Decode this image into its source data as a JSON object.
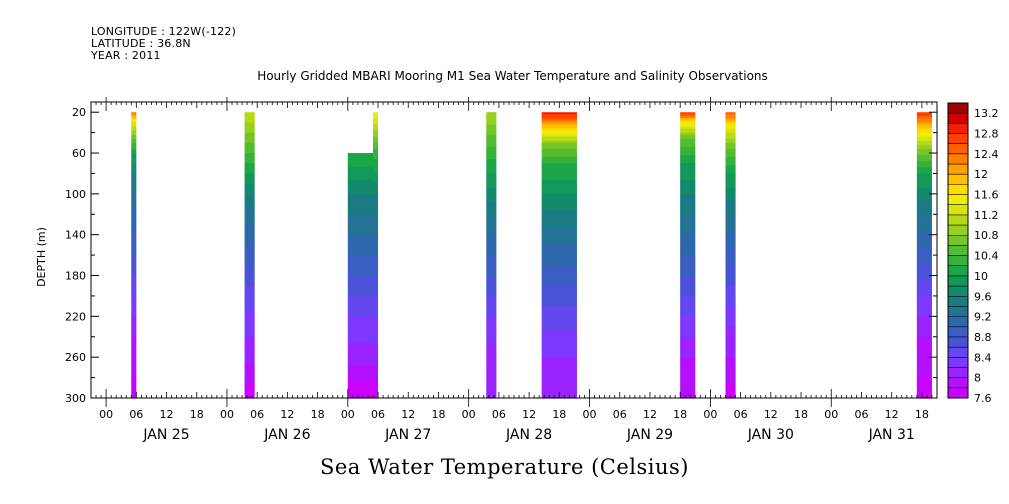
{
  "header": {
    "longitude": "LONGITUDE : 122W(-122)",
    "latitude": "LATITUDE : 36.8N",
    "year": "YEAR : 2011",
    "title": "Hourly Gridded MBARI Mooring M1 Sea Water Temperature and Salinity Observations"
  },
  "bottom_title": "Sea Water Temperature (Celsius)",
  "chart_data": {
    "type": "heatmap",
    "title": "Hourly Gridded MBARI Mooring M1 Sea Water Temperature and Salinity Observations",
    "xlabel": "",
    "ylabel": "DEPTH (m)",
    "ylim": [
      300,
      10
    ],
    "y_ticks": [
      20,
      60,
      100,
      140,
      180,
      220,
      260,
      300
    ],
    "x_hour_ticks": [
      "00",
      "06",
      "12",
      "18",
      "00",
      "06",
      "12",
      "18",
      "00",
      "06",
      "12",
      "18",
      "00",
      "06",
      "12",
      "18",
      "00",
      "06",
      "12",
      "18",
      "00",
      "06",
      "12",
      "18",
      "00",
      "06",
      "12",
      "18"
    ],
    "x_day_labels": [
      "JAN 25",
      "JAN 26",
      "JAN 27",
      "JAN 28",
      "JAN 29",
      "JAN 30",
      "JAN 31"
    ],
    "x_range_hours": [
      -3,
      165
    ],
    "colorbar": {
      "label": "Sea Water Temperature (Celsius)",
      "tick_labels": [
        "13.2",
        "12.8",
        "12.4",
        "12",
        "11.6",
        "11.2",
        "10.8",
        "10.4",
        "10",
        "9.6",
        "9.2",
        "8.8",
        "8.4",
        "8",
        "7.6"
      ],
      "levels": [
        7.6,
        7.8,
        8.0,
        8.2,
        8.4,
        8.6,
        8.8,
        9.0,
        9.2,
        9.4,
        9.6,
        9.8,
        10.0,
        10.2,
        10.4,
        10.6,
        10.8,
        11.0,
        11.2,
        11.4,
        11.6,
        11.8,
        12.0,
        12.2,
        12.4,
        12.6,
        12.8,
        13.0,
        13.2
      ],
      "colors": [
        "#cc00ff",
        "#b410ff",
        "#9a24ff",
        "#7f38ff",
        "#6348ee",
        "#4a52d8",
        "#3a5ec2",
        "#2e68ac",
        "#247296",
        "#1a7c82",
        "#148a6c",
        "#14985a",
        "#1ca64a",
        "#34b23c",
        "#54bc30",
        "#74c628",
        "#96d020",
        "#b6da18",
        "#d6e410",
        "#f0ec08",
        "#ffdc00",
        "#ffc000",
        "#ffa000",
        "#ff8000",
        "#ff6000",
        "#ff4000",
        "#f02000",
        "#d00000",
        "#a00000"
      ]
    },
    "segments": [
      {
        "start_hour": 5.0,
        "end_hour": 6.0,
        "top_depth": 20,
        "profile": [
          [
            20,
            12.4
          ],
          [
            30,
            11.4
          ],
          [
            45,
            10.6
          ],
          [
            60,
            10.0
          ],
          [
            80,
            9.6
          ],
          [
            120,
            9.1
          ],
          [
            160,
            8.8
          ],
          [
            200,
            8.4
          ],
          [
            240,
            8.0
          ],
          [
            280,
            7.8
          ],
          [
            300,
            7.6
          ]
        ]
      },
      {
        "start_hour": 27.5,
        "end_hour": 29.5,
        "top_depth": 20,
        "profile": [
          [
            20,
            11.2
          ],
          [
            40,
            10.8
          ],
          [
            60,
            10.4
          ],
          [
            90,
            9.8
          ],
          [
            120,
            9.3
          ],
          [
            160,
            8.9
          ],
          [
            200,
            8.5
          ],
          [
            240,
            8.2
          ],
          [
            280,
            7.9
          ],
          [
            300,
            7.6
          ]
        ]
      },
      {
        "start_hour": 48.0,
        "end_hour": 53.0,
        "top_depth": 60,
        "profile": [
          [
            60,
            10.2
          ],
          [
            100,
            9.6
          ],
          [
            140,
            9.2
          ],
          [
            180,
            8.8
          ],
          [
            220,
            8.4
          ],
          [
            260,
            8.1
          ],
          [
            300,
            7.6
          ]
        ]
      },
      {
        "start_hour": 53.0,
        "end_hour": 54.0,
        "top_depth": 20,
        "profile": [
          [
            20,
            11.6
          ],
          [
            40,
            10.9
          ],
          [
            60,
            10.3
          ],
          [
            100,
            9.6
          ],
          [
            140,
            9.2
          ],
          [
            180,
            8.8
          ],
          [
            220,
            8.4
          ],
          [
            260,
            8.1
          ],
          [
            300,
            7.6
          ]
        ]
      },
      {
        "start_hour": 75.5,
        "end_hour": 77.5,
        "top_depth": 20,
        "profile": [
          [
            20,
            11.0
          ],
          [
            60,
            10.3
          ],
          [
            100,
            9.7
          ],
          [
            140,
            9.2
          ],
          [
            180,
            8.8
          ],
          [
            220,
            8.4
          ],
          [
            260,
            8.1
          ],
          [
            300,
            8.0
          ]
        ]
      },
      {
        "start_hour": 86.5,
        "end_hour": 93.5,
        "top_depth": 20,
        "profile": [
          [
            20,
            13.0
          ],
          [
            25,
            12.6
          ],
          [
            35,
            11.8
          ],
          [
            50,
            10.8
          ],
          [
            70,
            10.2
          ],
          [
            100,
            9.8
          ],
          [
            140,
            9.3
          ],
          [
            180,
            8.9
          ],
          [
            220,
            8.5
          ],
          [
            260,
            8.2
          ],
          [
            300,
            8.0
          ]
        ]
      },
      {
        "start_hour": 114.0,
        "end_hour": 117.0,
        "top_depth": 20,
        "profile": [
          [
            20,
            12.8
          ],
          [
            30,
            11.6
          ],
          [
            45,
            10.6
          ],
          [
            70,
            10.0
          ],
          [
            100,
            9.6
          ],
          [
            140,
            9.2
          ],
          [
            180,
            8.8
          ],
          [
            220,
            8.4
          ],
          [
            260,
            8.0
          ],
          [
            300,
            7.8
          ]
        ]
      },
      {
        "start_hour": 123.0,
        "end_hour": 125.0,
        "top_depth": 20,
        "profile": [
          [
            20,
            12.6
          ],
          [
            35,
            11.4
          ],
          [
            55,
            10.6
          ],
          [
            80,
            10.0
          ],
          [
            120,
            9.4
          ],
          [
            160,
            8.9
          ],
          [
            200,
            8.5
          ],
          [
            240,
            8.1
          ],
          [
            280,
            7.9
          ],
          [
            300,
            7.6
          ]
        ]
      },
      {
        "start_hour": 161.0,
        "end_hour": 164.0,
        "top_depth": 20,
        "profile": [
          [
            20,
            12.8
          ],
          [
            35,
            11.8
          ],
          [
            55,
            10.8
          ],
          [
            80,
            10.0
          ],
          [
            120,
            9.4
          ],
          [
            160,
            8.9
          ],
          [
            200,
            8.4
          ],
          [
            240,
            8.0
          ],
          [
            280,
            7.8
          ],
          [
            300,
            7.6
          ]
        ]
      }
    ]
  }
}
